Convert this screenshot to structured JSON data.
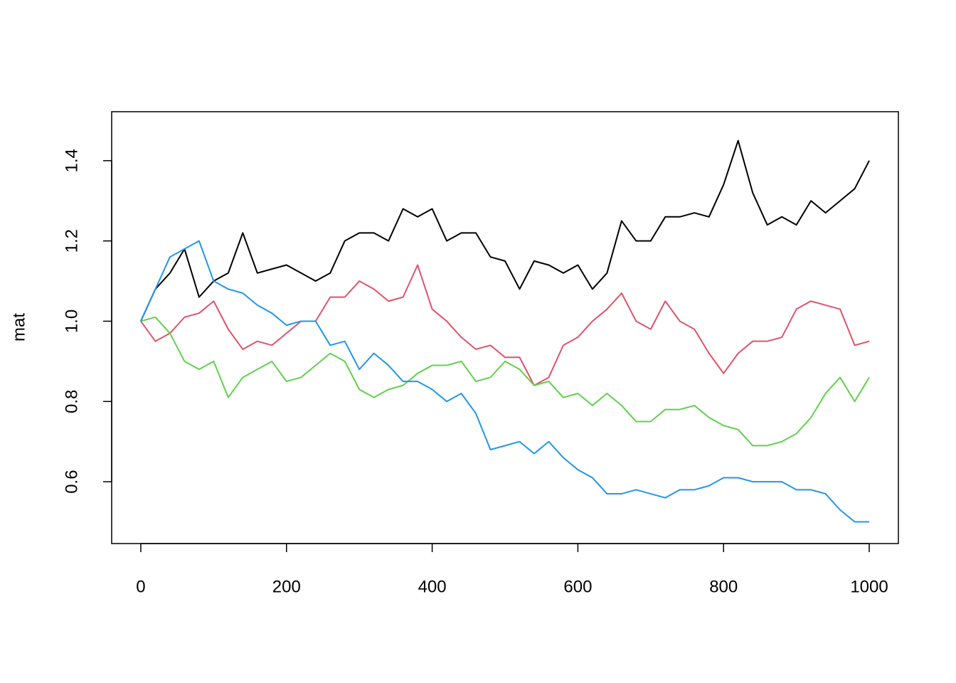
{
  "chart_data": {
    "type": "line",
    "ylabel": "mat",
    "x": [
      0,
      20,
      40,
      60,
      80,
      100,
      120,
      140,
      160,
      180,
      200,
      220,
      240,
      260,
      280,
      300,
      320,
      340,
      360,
      380,
      400,
      420,
      440,
      460,
      480,
      500,
      520,
      540,
      560,
      580,
      600,
      620,
      640,
      660,
      680,
      700,
      720,
      740,
      760,
      780,
      800,
      820,
      840,
      860,
      880,
      900,
      920,
      940,
      960,
      980,
      1000
    ],
    "series": [
      {
        "color": "#000000",
        "values": [
          1.0,
          1.08,
          1.12,
          1.18,
          1.06,
          1.1,
          1.12,
          1.22,
          1.12,
          1.13,
          1.14,
          1.12,
          1.1,
          1.12,
          1.2,
          1.22,
          1.22,
          1.2,
          1.28,
          1.26,
          1.28,
          1.2,
          1.22,
          1.22,
          1.16,
          1.15,
          1.08,
          1.15,
          1.14,
          1.12,
          1.14,
          1.08,
          1.12,
          1.25,
          1.2,
          1.2,
          1.26,
          1.26,
          1.27,
          1.26,
          1.34,
          1.45,
          1.32,
          1.24,
          1.26,
          1.24,
          1.3,
          1.27,
          1.3,
          1.33,
          1.4
        ]
      },
      {
        "color": "#DF536B",
        "values": [
          1.0,
          0.95,
          0.97,
          1.01,
          1.02,
          1.05,
          0.98,
          0.93,
          0.95,
          0.94,
          0.97,
          1.0,
          1.0,
          1.06,
          1.06,
          1.1,
          1.08,
          1.05,
          1.06,
          1.14,
          1.03,
          1.0,
          0.96,
          0.93,
          0.94,
          0.91,
          0.91,
          0.84,
          0.86,
          0.94,
          0.96,
          1.0,
          1.03,
          1.07,
          1.0,
          0.98,
          1.05,
          1.0,
          0.98,
          0.92,
          0.87,
          0.92,
          0.95,
          0.95,
          0.96,
          1.03,
          1.05,
          1.04,
          1.03,
          0.94,
          0.95
        ]
      },
      {
        "color": "#61D04F",
        "values": [
          1.0,
          1.01,
          0.97,
          0.9,
          0.88,
          0.9,
          0.81,
          0.86,
          0.88,
          0.9,
          0.85,
          0.86,
          0.89,
          0.92,
          0.9,
          0.83,
          0.81,
          0.83,
          0.84,
          0.87,
          0.89,
          0.89,
          0.9,
          0.85,
          0.86,
          0.9,
          0.88,
          0.84,
          0.85,
          0.81,
          0.82,
          0.79,
          0.82,
          0.79,
          0.75,
          0.75,
          0.78,
          0.78,
          0.79,
          0.76,
          0.74,
          0.73,
          0.69,
          0.69,
          0.7,
          0.72,
          0.76,
          0.82,
          0.86,
          0.8,
          0.86
        ]
      },
      {
        "color": "#2297E6",
        "values": [
          1.0,
          1.08,
          1.16,
          1.18,
          1.2,
          1.1,
          1.08,
          1.07,
          1.04,
          1.02,
          0.99,
          1.0,
          1.0,
          0.94,
          0.95,
          0.88,
          0.92,
          0.89,
          0.85,
          0.85,
          0.83,
          0.8,
          0.82,
          0.77,
          0.68,
          0.69,
          0.7,
          0.67,
          0.7,
          0.66,
          0.63,
          0.61,
          0.57,
          0.57,
          0.58,
          0.57,
          0.56,
          0.58,
          0.58,
          0.59,
          0.61,
          0.61,
          0.6,
          0.6,
          0.6,
          0.58,
          0.58,
          0.57,
          0.53,
          0.5,
          0.5
        ]
      }
    ],
    "xlim": [
      -40,
      1040
    ],
    "ylim": [
      0.446,
      1.522
    ],
    "xticks": [
      0,
      200,
      400,
      600,
      800,
      1000
    ],
    "yticks": [
      0.6,
      0.8,
      {
        "value": 1,
        "label": "1.0"
      },
      1.2,
      1.4
    ]
  }
}
